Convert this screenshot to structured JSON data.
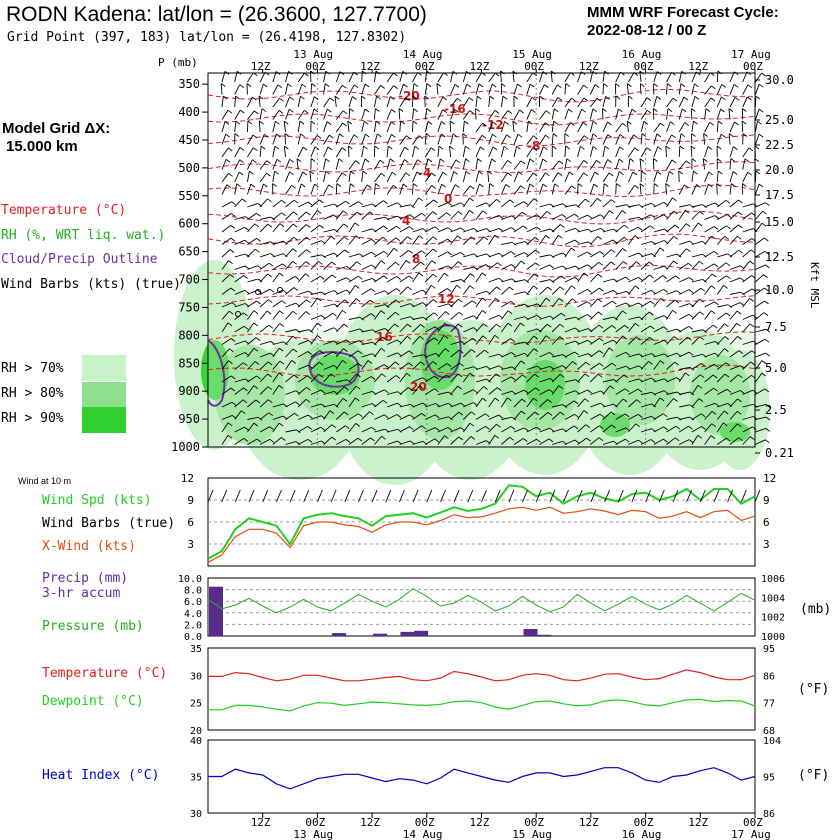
{
  "header": {
    "station_title": "RODN Kadena:  lat/lon = (26.3600, 127.7700)",
    "grid_point": "Grid Point (397, 183) lat/lon = (26.4198, 127.8302)",
    "cycle_line1": "MMM WRF Forecast Cycle:",
    "cycle_line2": "2022-08-12 / 00  Z",
    "model_grid_line1": "Model Grid ΔX:",
    "model_grid_line2": "15.000 km"
  },
  "time_axis": {
    "hour_labels": [
      "12Z",
      "00Z",
      "12Z",
      "00Z",
      "12Z",
      "00Z",
      "12Z",
      "00Z",
      "12Z",
      "00Z"
    ],
    "date_labels": [
      "13 Aug",
      "14 Aug",
      "15 Aug",
      "16 Aug",
      "17 Aug"
    ]
  },
  "legend": {
    "temperature": "Temperature (°C)",
    "rh": "RH (%, WRT liq. wat.)",
    "cloud": "Cloud/Precip Outline",
    "barbs": "Wind Barbs (kts) (true)",
    "rh_levels": [
      "RH > 70%",
      "RH > 80%",
      "RH > 90%"
    ],
    "colors": {
      "temperature": "#e02020",
      "rh70": "#c8f2c8",
      "rh80": "#8ee08e",
      "rh90": "#30d030",
      "cloud": "#7030a0",
      "wind_speed": "#20d020",
      "x_wind": "#e05010",
      "heat_index": "#0000c0"
    }
  },
  "sounding": {
    "pressure_label": "P (mb)",
    "height_label": "Kft MSL",
    "pressure_ticks": [
      "350",
      "400",
      "450",
      "500",
      "550",
      "600",
      "650",
      "700",
      "750",
      "800",
      "850",
      "900",
      "950",
      "1000"
    ],
    "height_ticks": [
      "30.0",
      "25.0",
      "22.5",
      "20.0",
      "17.5",
      "15.0",
      "12.5",
      "10.0",
      "7.5",
      "5.0",
      "2.5",
      "0.21"
    ],
    "isotherm_labels": [
      "-20",
      "-16",
      "-12",
      "-8",
      "-4",
      "0",
      "4",
      "8",
      "12",
      "16",
      "20"
    ]
  },
  "panels": {
    "wind": {
      "title": "Wind at 10 m",
      "wind_spd_label": "Wind Spd (kts)",
      "wind_barbs_label": "Wind Barbs (true)",
      "x_wind_label": "X-Wind (kts)",
      "ticks": [
        "12",
        "9",
        "6",
        "3"
      ]
    },
    "precip": {
      "precip_label": "Precip (mm)",
      "accum_label": "3-hr accum",
      "pressure_label": "Pressure (mb)",
      "left_ticks": [
        "10.0",
        "8.0",
        "6.0",
        "4.0",
        "2.0",
        "0.0"
      ],
      "right_ticks": [
        "1006",
        "1004",
        "1002",
        "1000"
      ],
      "right_unit": "(mb)"
    },
    "temp": {
      "temperature_label": "Temperature (°C)",
      "dewpoint_label": "Dewpoint (°C)",
      "left_ticks": [
        "35",
        "30",
        "25",
        "20"
      ],
      "right_ticks": [
        "95",
        "86",
        "77",
        "68"
      ],
      "right_unit": "(°F)"
    },
    "heat": {
      "heat_label": "Heat Index (°C)",
      "left_ticks": [
        "40",
        "35",
        "30"
      ],
      "right_ticks": [
        "104",
        "95",
        "86"
      ],
      "right_unit": "(°F)"
    }
  },
  "chart_data": [
    {
      "type": "line",
      "title": "Wind at 10 m",
      "x_hours": [
        0,
        3,
        6,
        9,
        12,
        15,
        18,
        21,
        24,
        27,
        30,
        33,
        36,
        39,
        42,
        45,
        48,
        51,
        54,
        57,
        60,
        63,
        66,
        69,
        72,
        75,
        78,
        81,
        84,
        87,
        90,
        93,
        96,
        99,
        102,
        105,
        108,
        111,
        114,
        117,
        120
      ],
      "series": [
        {
          "name": "Wind Spd (kts)",
          "values": [
            1,
            2,
            5,
            6.5,
            6,
            5.5,
            3,
            6.5,
            7,
            7.2,
            6.8,
            6.5,
            5.5,
            6.8,
            7,
            7.2,
            6.6,
            7.3,
            8,
            7.5,
            7.8,
            8.5,
            11,
            10.8,
            9.5,
            10,
            8.5,
            9.5,
            10,
            9.2,
            8.8,
            9.8,
            10,
            9,
            9.5,
            10.5,
            9,
            10.5,
            10.5,
            8.5,
            9.5
          ]
        },
        {
          "name": "X-Wind (kts)",
          "values": [
            0.5,
            1.5,
            4,
            5,
            5,
            4.5,
            2.5,
            5.5,
            6,
            6,
            5.6,
            5.4,
            4.6,
            5.6,
            6,
            6,
            5.6,
            6.2,
            7,
            6.6,
            6.7,
            7.2,
            7.8,
            8,
            7.6,
            8,
            7.2,
            7.4,
            7.8,
            7.5,
            7,
            7.6,
            7.4,
            6.5,
            6.8,
            7.4,
            6.6,
            7.4,
            7.6,
            6.2,
            6.8
          ]
        }
      ],
      "ylim": [
        0,
        12
      ]
    },
    {
      "type": "bar",
      "title": "Precip (mm) 3-hr accum",
      "bars_hours": [
        0,
        27,
        36,
        42,
        45,
        69,
        72
      ],
      "bars_values": [
        8.5,
        0.5,
        0.4,
        0.7,
        0.9,
        1.2,
        0.2
      ],
      "ylim": [
        0,
        10
      ],
      "series": [
        {
          "name": "Pressure (mb)",
          "values": [
            1003.8,
            1002.8,
            1003.2,
            1003.9,
            1003.1,
            1002.4,
            1003.0,
            1003.8,
            1003.0,
            1002.6,
            1003.4,
            1004.3,
            1003.6,
            1003.0,
            1003.8,
            1004.9,
            1004.1,
            1003.1,
            1003.4,
            1004.2,
            1003.5,
            1002.6,
            1003.1,
            1004.1,
            1003.2,
            1002.5,
            1003.0,
            1004.3,
            1003.4,
            1002.6,
            1003.3,
            1004.1,
            1003.3,
            1002.7,
            1003.3,
            1004.2,
            1003.4,
            1002.6,
            1003.5,
            1004.4,
            1003.7
          ]
        }
      ],
      "y2lim": [
        1000,
        1006
      ]
    },
    {
      "type": "line",
      "title": "Temperature / Dewpoint",
      "series": [
        {
          "name": "Temperature (°C)",
          "values": [
            29.8,
            29.8,
            30.5,
            30.3,
            29.6,
            29.0,
            29.3,
            30.0,
            30.0,
            29.5,
            29.0,
            29.0,
            29.3,
            29.6,
            29.8,
            29.2,
            29.0,
            29.5,
            30.7,
            30.3,
            29.7,
            29.0,
            29.2,
            30.0,
            30.3,
            30.0,
            29.2,
            29.0,
            29.5,
            30.2,
            30.3,
            29.7,
            29.2,
            29.4,
            30.2,
            31.0,
            30.5,
            29.7,
            29.2,
            29.2,
            30.0
          ]
        },
        {
          "name": "Dewpoint (°C)",
          "values": [
            23.7,
            23.7,
            24.5,
            24.5,
            24.2,
            23.8,
            23.5,
            24.4,
            25.0,
            24.9,
            24.5,
            24.8,
            25.1,
            25.0,
            24.8,
            24.6,
            24.5,
            24.7,
            25.2,
            25.3,
            25.0,
            24.2,
            23.8,
            24.5,
            25.2,
            25.3,
            24.8,
            24.4,
            24.6,
            25.3,
            25.5,
            25.2,
            24.6,
            24.4,
            25.0,
            25.5,
            25.6,
            25.2,
            25.4,
            25.3,
            24.4
          ]
        }
      ],
      "ylim": [
        20,
        35
      ]
    },
    {
      "type": "line",
      "title": "Heat Index",
      "series": [
        {
          "name": "Heat Index (°C)",
          "values": [
            35,
            35,
            36,
            35.5,
            35.2,
            34,
            33.3,
            34,
            34.7,
            35,
            35.3,
            35.3,
            34.8,
            34.3,
            34.7,
            34.5,
            34,
            34.8,
            36,
            35.5,
            35,
            34.5,
            34.2,
            35,
            35.5,
            35.5,
            35,
            35.2,
            35.7,
            36.2,
            36.2,
            35.5,
            34.5,
            34.2,
            35,
            35.2,
            35.8,
            36.2,
            35.5,
            34.5,
            35
          ]
        }
      ],
      "ylim": [
        30,
        40
      ]
    }
  ]
}
